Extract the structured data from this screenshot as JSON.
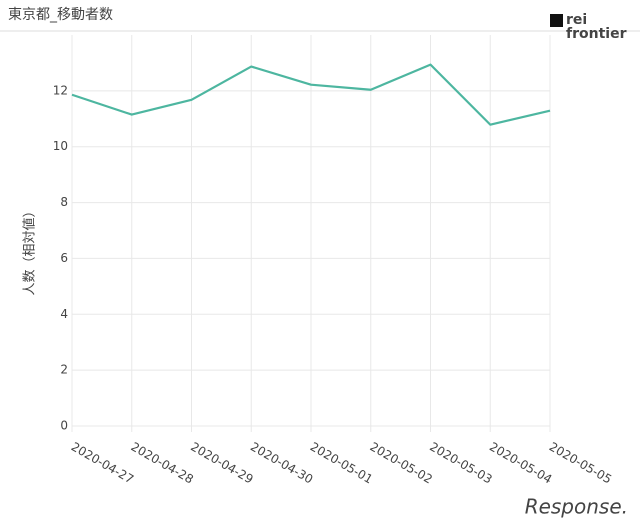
{
  "chart_data": {
    "type": "line",
    "title": "東京都_移動者数",
    "y_label": "人数（相対値）",
    "categories": [
      "2020-04-27",
      "2020-04-28",
      "2020-04-29",
      "2020-04-30",
      "2020-05-01",
      "2020-05-02",
      "2020-05-03",
      "2020-05-04",
      "2020-05-05"
    ],
    "values": [
      11.86,
      11.15,
      11.68,
      12.87,
      12.22,
      12.04,
      12.94,
      10.79,
      11.29
    ],
    "color": "#4db6a0",
    "ylim": [
      0,
      14
    ],
    "yticks": [
      0,
      2,
      4,
      6,
      8,
      10,
      12
    ],
    "grid": true
  },
  "logo": {
    "line1": "rei",
    "line2": "frontier"
  },
  "watermark": "Response."
}
